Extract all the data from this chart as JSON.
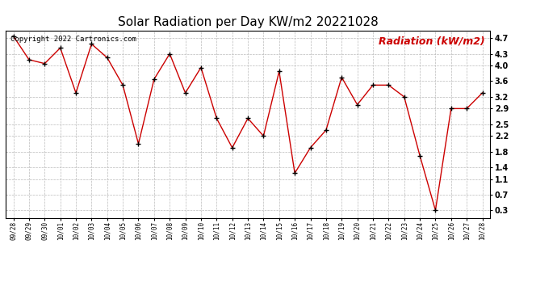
{
  "title": "Solar Radiation per Day KW/m2 20221028",
  "copyright_text": "Copyright 2022 Cartronics.com",
  "legend_text": "Radiation (kW/m2)",
  "dates": [
    "09/28",
    "09/29",
    "09/30",
    "10/01",
    "10/02",
    "10/03",
    "10/04",
    "10/05",
    "10/06",
    "10/07",
    "10/08",
    "10/09",
    "10/10",
    "10/11",
    "10/12",
    "10/13",
    "10/14",
    "10/15",
    "10/16",
    "10/17",
    "10/18",
    "10/19",
    "10/20",
    "10/21",
    "10/22",
    "10/23",
    "10/24",
    "10/25",
    "10/26",
    "10/27",
    "10/28"
  ],
  "values": [
    4.75,
    4.15,
    4.05,
    4.45,
    3.3,
    4.55,
    4.2,
    3.5,
    2.0,
    3.65,
    4.3,
    3.3,
    3.95,
    2.65,
    1.9,
    2.65,
    2.2,
    3.85,
    1.25,
    1.9,
    2.35,
    3.7,
    3.0,
    3.5,
    3.5,
    3.2,
    1.7,
    0.3,
    2.9,
    2.9,
    3.3
  ],
  "line_color": "#cc0000",
  "marker_color": "#000000",
  "background_color": "#ffffff",
  "grid_color": "#bbbbbb",
  "title_fontsize": 11,
  "copyright_fontsize": 6.5,
  "legend_fontsize": 9,
  "ylim": [
    0.1,
    4.9
  ],
  "yticks": [
    0.3,
    0.7,
    1.1,
    1.4,
    1.8,
    2.2,
    2.5,
    2.9,
    3.2,
    3.6,
    4.0,
    4.3,
    4.7
  ]
}
